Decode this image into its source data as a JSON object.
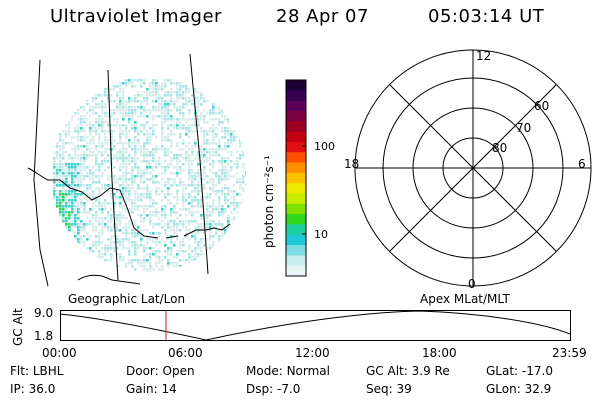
{
  "header": {
    "instrument": "Ultraviolet Imager",
    "date": "28 Apr 07",
    "time": "05:03:14 UT"
  },
  "colorbar": {
    "unit_label": "photon cm⁻²s⁻¹",
    "ticks": [
      "100",
      "10"
    ],
    "colors": [
      "#1a0033",
      "#3a0050",
      "#5a005a",
      "#7a0040",
      "#9a0020",
      "#c00010",
      "#e01010",
      "#ff5000",
      "#ff9000",
      "#ffc000",
      "#f0e800",
      "#c8ec00",
      "#80e000",
      "#30d820",
      "#20d0a0",
      "#20c8d8",
      "#80dde8",
      "#c8eef0",
      "#e8f6f6"
    ]
  },
  "polar_plot": {
    "mlt_labels": {
      "top": "12",
      "left": "18",
      "right": "6",
      "bottom": "0"
    },
    "lat_labels": [
      "60",
      "70",
      "80"
    ]
  },
  "geo_map": {
    "caption": "Geographic Lat/Lon",
    "colors": {
      "background_dot": "#d8ecec",
      "light_cyan": "#a8e4e4",
      "cyan": "#40d0c8",
      "green": "#30d060"
    }
  },
  "apex_caption": "Apex MLat/MLT",
  "altitude_plot": {
    "ylabel": "GC Alt",
    "yticks": [
      "9.0",
      "1.8"
    ],
    "xticks": [
      "00:00",
      "06:00",
      "12:00",
      "18:00",
      "23:59"
    ],
    "current_time_color": "#c02020"
  },
  "status": {
    "row1": {
      "flt_label": "Flt:",
      "flt_value": "LBHL",
      "door_label": "Door:",
      "door_value": "Open",
      "mode_label": "Mode:",
      "mode_value": "Normal",
      "gcalt_label": "GC Alt:",
      "gcalt_value": "3.9 Re",
      "glat_label": "GLat:",
      "glat_value": "-17.0"
    },
    "row2": {
      "ip_label": "IP:",
      "ip_value": "36.0",
      "gain_label": "Gain:",
      "gain_value": "14",
      "dsp_label": "Dsp:",
      "dsp_value": "-7.0",
      "seq_label": "Seq:",
      "seq_value": "39",
      "glon_label": "GLon:",
      "glon_value": "32.9"
    }
  }
}
